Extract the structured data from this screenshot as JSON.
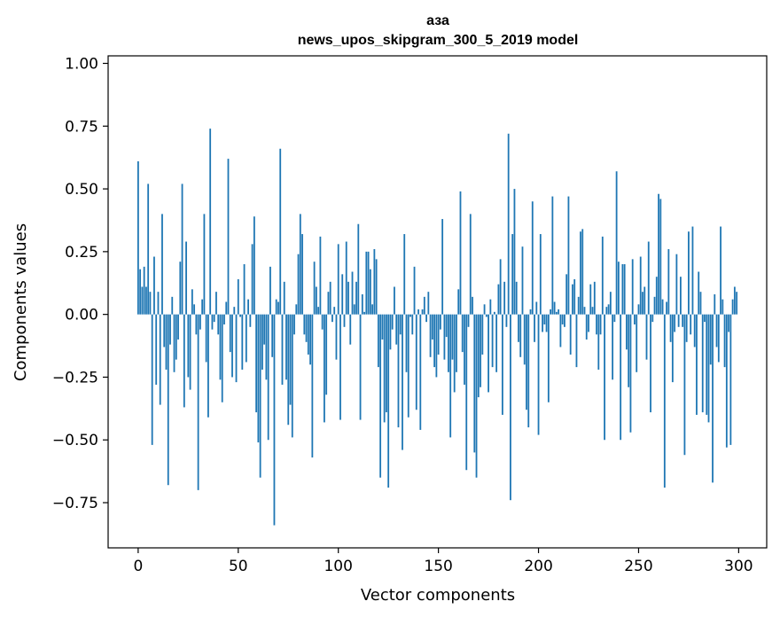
{
  "chart_data": {
    "type": "bar",
    "title": "аза",
    "subtitle": "news_upos_skipgram_300_5_2019 model",
    "xlabel": "Vector components",
    "ylabel": "Components values",
    "xlim": [
      -15,
      314
    ],
    "ylim": [
      -0.93,
      1.03
    ],
    "x_ticks": [
      0,
      50,
      100,
      150,
      200,
      250,
      300
    ],
    "x_tick_labels": [
      "0",
      "50",
      "100",
      "150",
      "200",
      "250",
      "300"
    ],
    "y_ticks": [
      -0.75,
      -0.5,
      -0.25,
      0.0,
      0.25,
      0.5,
      0.75,
      1.0
    ],
    "y_tick_labels": [
      "−0.75",
      "−0.50",
      "−0.25",
      "0.00",
      "0.25",
      "0.50",
      "0.75",
      "1.00"
    ],
    "grid": false,
    "series_color": "#1f77b4",
    "x": "0..299 (one bar per vector component)",
    "values": [
      0.61,
      0.18,
      0.11,
      0.19,
      0.11,
      0.52,
      0.09,
      -0.52,
      0.23,
      -0.28,
      0.09,
      -0.36,
      0.4,
      -0.13,
      -0.22,
      -0.68,
      -0.12,
      0.07,
      -0.23,
      -0.18,
      -0.1,
      0.21,
      0.52,
      -0.37,
      0.29,
      -0.25,
      -0.3,
      0.1,
      0.04,
      -0.08,
      -0.7,
      -0.06,
      0.06,
      0.4,
      -0.19,
      -0.41,
      0.74,
      -0.06,
      -0.03,
      0.09,
      -0.08,
      -0.26,
      -0.35,
      -0.04,
      0.05,
      0.62,
      -0.15,
      -0.25,
      0.03,
      -0.27,
      0.14,
      -0.01,
      -0.22,
      0.2,
      -0.19,
      0.06,
      -0.05,
      0.28,
      0.39,
      -0.39,
      -0.51,
      -0.65,
      -0.22,
      -0.12,
      -0.26,
      -0.5,
      0.19,
      -0.17,
      -0.84,
      0.06,
      0.05,
      0.66,
      -0.28,
      0.13,
      -0.26,
      -0.44,
      -0.36,
      -0.49,
      -0.08,
      0.04,
      0.24,
      0.4,
      0.32,
      -0.08,
      -0.11,
      -0.16,
      -0.2,
      -0.57,
      0.21,
      0.11,
      0.03,
      0.31,
      -0.06,
      -0.43,
      -0.32,
      0.09,
      0.13,
      -0.03,
      0.03,
      -0.18,
      0.28,
      -0.42,
      0.16,
      -0.05,
      0.29,
      0.13,
      -0.12,
      0.17,
      0.04,
      0.13,
      0.36,
      -0.42,
      0.08,
      0.01,
      0.25,
      0.25,
      0.18,
      0.04,
      0.26,
      0.22,
      -0.21,
      -0.65,
      -0.1,
      -0.43,
      -0.39,
      -0.69,
      -0.14,
      -0.06,
      0.11,
      -0.12,
      -0.45,
      -0.08,
      -0.54,
      0.32,
      -0.23,
      -0.41,
      -0.01,
      -0.08,
      0.19,
      -0.38,
      0.02,
      -0.46,
      0.02,
      0.07,
      -0.03,
      0.09,
      -0.17,
      -0.1,
      -0.21,
      -0.25,
      -0.16,
      -0.06,
      0.38,
      -0.18,
      -0.09,
      -0.23,
      -0.49,
      -0.18,
      -0.31,
      -0.23,
      0.1,
      0.49,
      -0.15,
      -0.28,
      -0.62,
      -0.05,
      0.4,
      0.07,
      -0.55,
      -0.65,
      -0.33,
      -0.29,
      -0.16,
      0.04,
      -0.01,
      -0.31,
      0.06,
      -0.21,
      0.01,
      -0.23,
      0.12,
      0.22,
      -0.4,
      0.13,
      -0.05,
      0.72,
      -0.74,
      0.32,
      0.5,
      0.13,
      -0.11,
      -0.17,
      0.27,
      -0.2,
      -0.38,
      -0.45,
      0.02,
      0.45,
      -0.11,
      0.05,
      -0.48,
      0.32,
      -0.07,
      -0.04,
      -0.07,
      -0.35,
      0.02,
      0.47,
      0.05,
      0.01,
      0.02,
      -0.13,
      -0.04,
      -0.05,
      0.16,
      0.47,
      -0.16,
      0.12,
      0.14,
      -0.21,
      0.07,
      0.33,
      0.34,
      0.03,
      -0.1,
      -0.07,
      0.12,
      0.03,
      0.13,
      -0.08,
      -0.22,
      -0.08,
      0.31,
      -0.5,
      0.03,
      0.04,
      0.09,
      -0.26,
      -0.03,
      0.57,
      0.21,
      -0.5,
      0.2,
      0.2,
      -0.14,
      -0.29,
      -0.47,
      0.22,
      -0.04,
      -0.23,
      0.04,
      0.23,
      0.09,
      0.11,
      -0.18,
      0.29,
      -0.39,
      -0.03,
      0.07,
      0.15,
      0.48,
      0.46,
      0.06,
      -0.69,
      0.05,
      0.26,
      -0.11,
      -0.27,
      -0.07,
      0.24,
      -0.05,
      0.15,
      -0.05,
      -0.56,
      -0.11,
      0.33,
      -0.08,
      0.35,
      -0.13,
      -0.4,
      0.17,
      0.09,
      -0.39,
      -0.03,
      -0.4,
      -0.43,
      -0.2,
      -0.67,
      0.08,
      -0.13,
      -0.19,
      0.35,
      0.06,
      -0.21,
      -0.53,
      -0.07,
      -0.52,
      0.06,
      0.11,
      0.09
    ]
  }
}
